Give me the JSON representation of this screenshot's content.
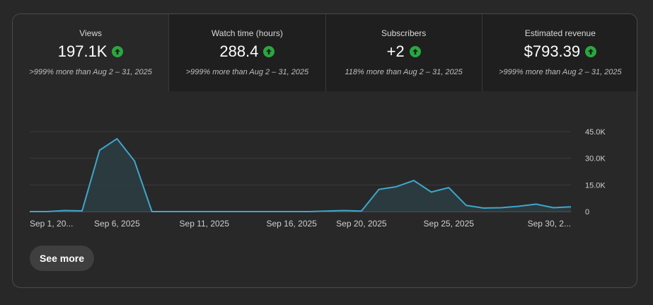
{
  "metrics": [
    {
      "label": "Views",
      "value": "197.1K",
      "compare": ">999% more than Aug 2 – 31, 2025",
      "selected": true
    },
    {
      "label": "Watch time (hours)",
      "value": "288.4",
      "compare": ">999% more than Aug 2 – 31, 2025",
      "selected": false
    },
    {
      "label": "Subscribers",
      "value": "+2",
      "compare": "118% more than Aug 2 – 31, 2025",
      "selected": false
    },
    {
      "label": "Estimated revenue",
      "value": "$793.39",
      "compare": ">999% more than Aug 2 – 31, 2025",
      "selected": false
    }
  ],
  "icons": {
    "trend": "arrow-up-icon"
  },
  "colors": {
    "up": "#2ba640",
    "line": "#3ea6cc",
    "fill": "#2c3e44",
    "grid": "#3a3a3a"
  },
  "chart_data": {
    "type": "area",
    "series": [
      {
        "values": [
          0,
          0,
          600,
          400,
          34500,
          41000,
          28500,
          0,
          0,
          0,
          0,
          0,
          0,
          0,
          0,
          0,
          0,
          300,
          600,
          300,
          12500,
          14000,
          17500,
          11000,
          13500,
          3500,
          2000,
          2200,
          3000,
          4200,
          2200,
          2700
        ]
      }
    ],
    "x": [
      "Sep 1",
      "Sep 2",
      "Sep 3",
      "Sep 4",
      "Sep 5",
      "Sep 6",
      "Sep 7",
      "Sep 8",
      "Sep 9",
      "Sep 10",
      "Sep 11",
      "Sep 12",
      "Sep 13",
      "Sep 14",
      "Sep 15",
      "Sep 16",
      "Sep 17",
      "Sep 18",
      "Sep 19",
      "Sep 20",
      "Sep 21",
      "Sep 22",
      "Sep 23",
      "Sep 24",
      "Sep 25",
      "Sep 26",
      "Sep 27",
      "Sep 28",
      "Sep 29",
      "Sep 30",
      "Oct 1",
      "Oct 2"
    ],
    "x_ticks": [
      {
        "index": 0,
        "label": "Sep 1, 20..."
      },
      {
        "index": 5,
        "label": "Sep 6, 2025"
      },
      {
        "index": 10,
        "label": "Sep 11, 2025"
      },
      {
        "index": 15,
        "label": "Sep 16, 2025"
      },
      {
        "index": 19,
        "label": "Sep 20, 2025"
      },
      {
        "index": 24,
        "label": "Sep 25, 2025"
      },
      {
        "index": 29,
        "label": "Sep 30, 2..."
      }
    ],
    "y_ticks": [
      {
        "value": 0,
        "label": "0"
      },
      {
        "value": 15000,
        "label": "15.0K"
      },
      {
        "value": 30000,
        "label": "30.0K"
      },
      {
        "value": 45000,
        "label": "45.0K"
      }
    ],
    "ylim": [
      0,
      45000
    ],
    "grid": true
  },
  "see_more_label": "See more"
}
